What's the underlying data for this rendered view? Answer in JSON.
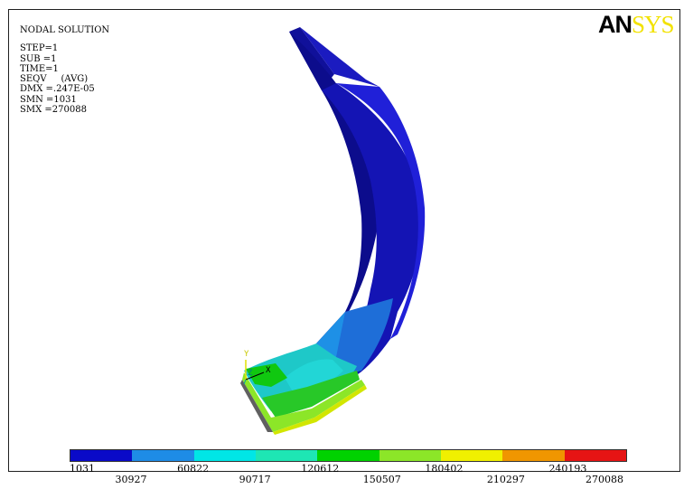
{
  "info": {
    "title": "NODAL SOLUTION",
    "lines": [
      "STEP=1",
      "SUB =1",
      "TIME=1",
      "SEQV     (AVG)",
      "DMX =.247E-05",
      "SMN =1031",
      "SMX =270088"
    ]
  },
  "logo": {
    "part1": "AN",
    "part2": "SYS"
  },
  "triad": {
    "y_label": "Y",
    "z_label": "Z",
    "x_label": "X"
  },
  "legend": {
    "colors": [
      "#0a0ac8",
      "#1e8ce6",
      "#00e6e6",
      "#1ee6b4",
      "#00d200",
      "#8ce628",
      "#f0f000",
      "#f09600",
      "#e61414"
    ],
    "labels": [
      "1031",
      "30927",
      "60822",
      "90717",
      "120612",
      "150507",
      "180402",
      "210297",
      "240193",
      "270088"
    ]
  }
}
